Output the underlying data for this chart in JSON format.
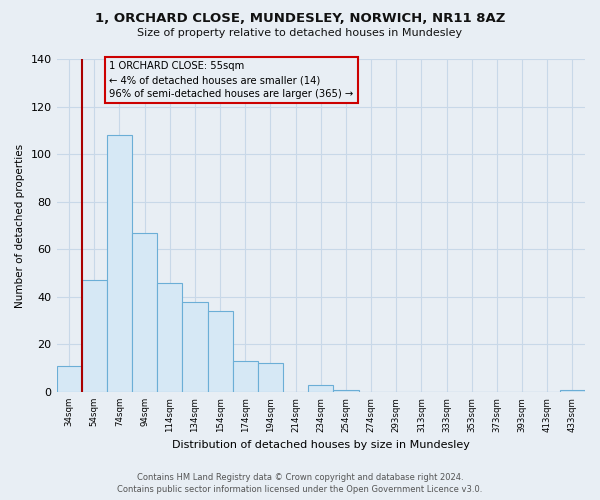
{
  "title": "1, ORCHARD CLOSE, MUNDESLEY, NORWICH, NR11 8AZ",
  "subtitle": "Size of property relative to detached houses in Mundesley",
  "xlabel": "Distribution of detached houses by size in Mundesley",
  "ylabel": "Number of detached properties",
  "bar_labels": [
    "34sqm",
    "54sqm",
    "74sqm",
    "94sqm",
    "114sqm",
    "134sqm",
    "154sqm",
    "174sqm",
    "194sqm",
    "214sqm",
    "234sqm",
    "254sqm",
    "274sqm",
    "293sqm",
    "313sqm",
    "333sqm",
    "353sqm",
    "373sqm",
    "393sqm",
    "413sqm",
    "433sqm"
  ],
  "bar_values": [
    11,
    47,
    108,
    67,
    46,
    38,
    34,
    13,
    12,
    0,
    3,
    1,
    0,
    0,
    0,
    0,
    0,
    0,
    0,
    0,
    1
  ],
  "bar_color_fill": "#d6e8f5",
  "bar_color_edge": "#6baed6",
  "vline_x": 1.5,
  "vline_color": "#aa0000",
  "annotation_title": "1 ORCHARD CLOSE: 55sqm",
  "annotation_line1": "← 4% of detached houses are smaller (14)",
  "annotation_line2": "96% of semi-detached houses are larger (365) →",
  "ylim": [
    0,
    140
  ],
  "yticks": [
    0,
    20,
    40,
    60,
    80,
    100,
    120,
    140
  ],
  "footer_line1": "Contains HM Land Registry data © Crown copyright and database right 2024.",
  "footer_line2": "Contains public sector information licensed under the Open Government Licence v3.0.",
  "background_color": "#e8eef4",
  "grid_color": "#c8d8e8"
}
